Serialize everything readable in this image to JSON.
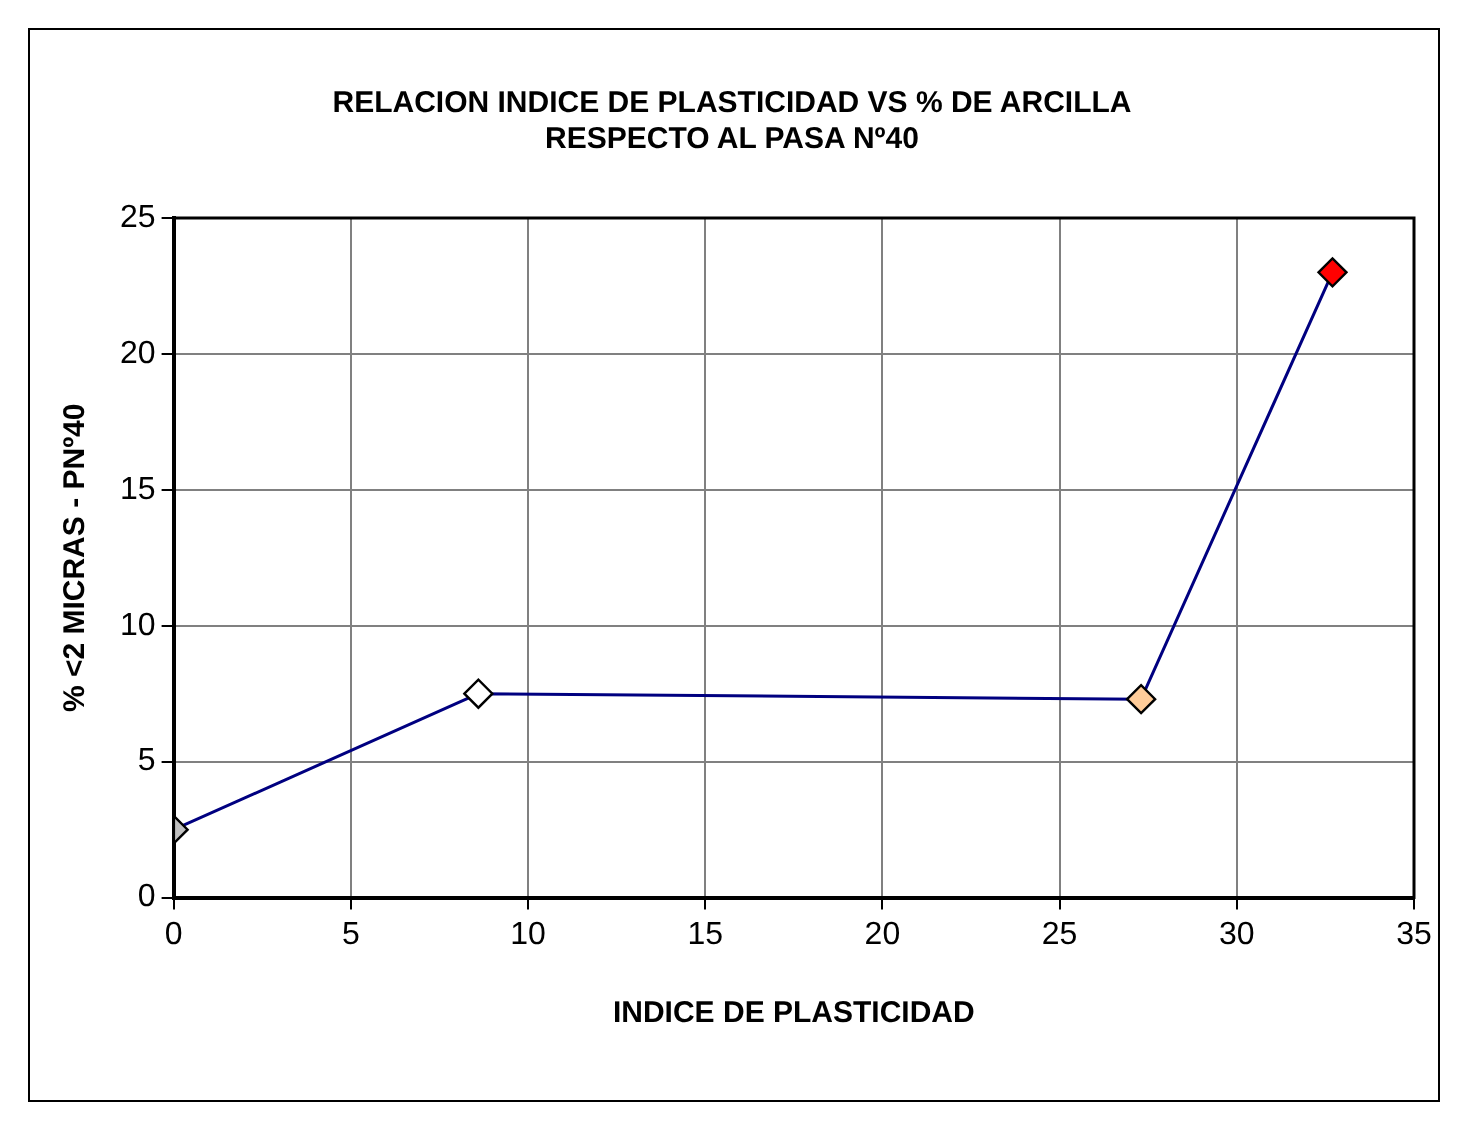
{
  "chart_data": {
    "type": "line",
    "title": "RELACION INDICE DE PLASTICIDAD VS % DE ARCILLA\nRESPECTO AL PASA Nº40",
    "xlabel": "INDICE DE PLASTICIDAD",
    "ylabel": "% <2 MICRAS - PNº40",
    "x": [
      0,
      8.6,
      27.3,
      32.7
    ],
    "series": [
      {
        "color": "#000080",
        "colors": [
          "#c0c0c0",
          "#ffffff",
          "#ffcc99",
          "#ff0000"
        ],
        "values": [
          2.5,
          7.5,
          7.3,
          23.0
        ]
      }
    ],
    "xlim": [
      0,
      35
    ],
    "xticks": [
      0,
      5,
      10,
      15,
      20,
      25,
      30,
      35
    ],
    "ylim": [
      0,
      25
    ],
    "yticks": [
      0,
      5,
      10,
      15,
      20,
      25
    ],
    "grid": true,
    "legend": false,
    "marker": "diamond",
    "line_style": "solid"
  }
}
